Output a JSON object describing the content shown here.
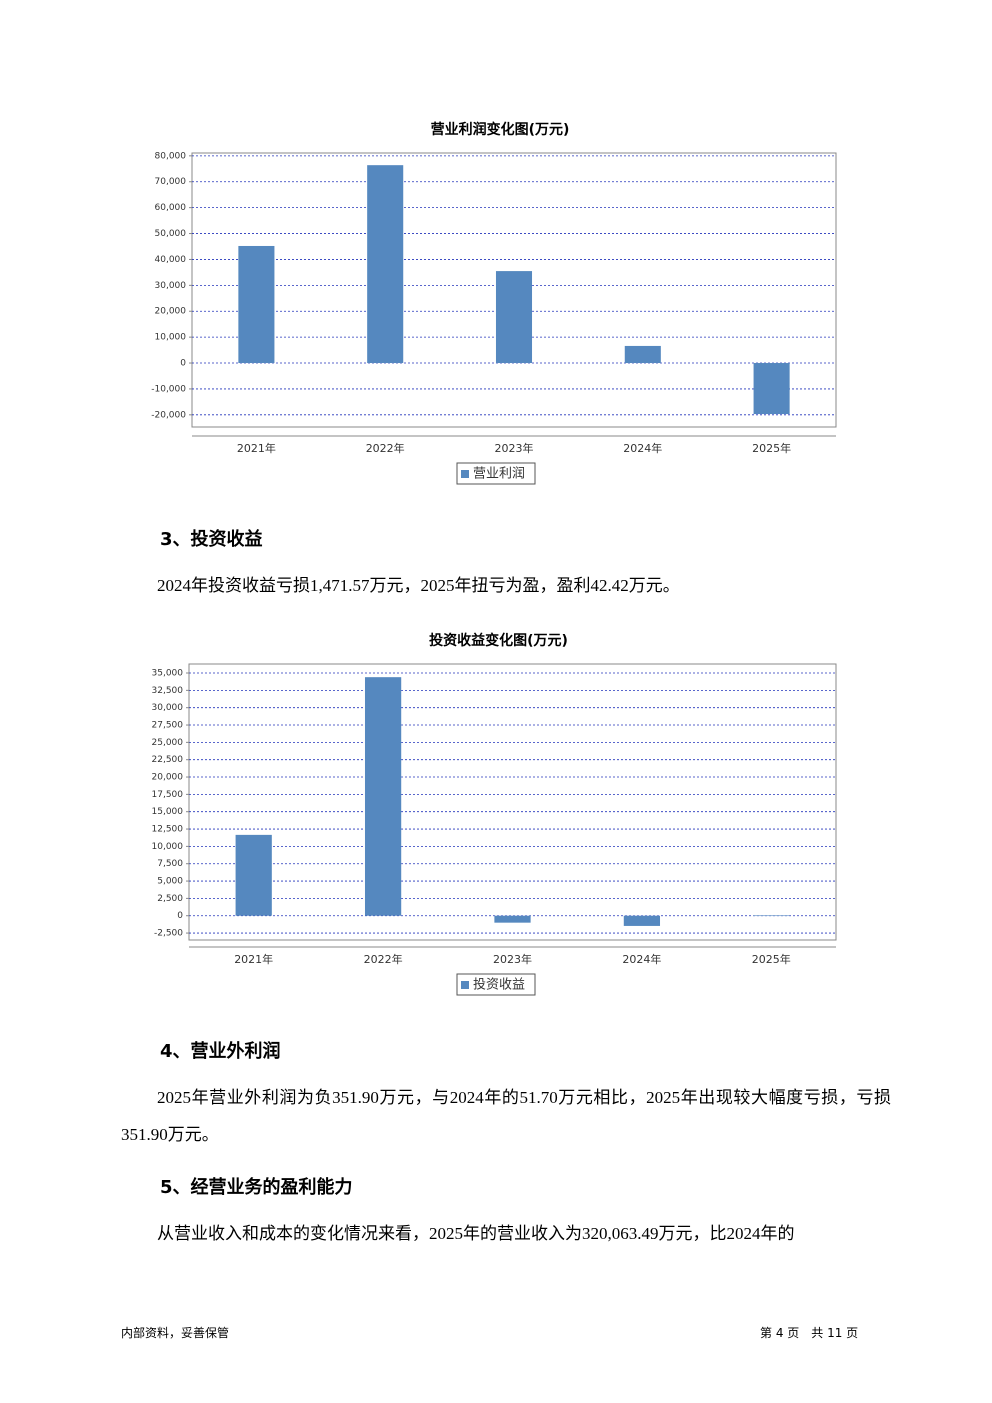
{
  "chart_data": [
    {
      "type": "bar",
      "title": "营业利润变化图(万元)",
      "categories": [
        "2021年",
        "2022年",
        "2023年",
        "2024年",
        "2025年"
      ],
      "series": [
        {
          "name": "营业利润",
          "color": "#5588bf",
          "values": [
            45200,
            76400,
            35500,
            6600,
            -19700
          ]
        }
      ],
      "ylim": [
        -24700,
        81100
      ],
      "yticks": [
        {
          "value": 80000,
          "label": "80,000"
        },
        {
          "value": 70000,
          "label": "70,000"
        },
        {
          "value": 60000,
          "label": "60,000"
        },
        {
          "value": 50000,
          "label": "50,000"
        },
        {
          "value": 40000,
          "label": "40,000"
        },
        {
          "value": 30000,
          "label": "30,000"
        },
        {
          "value": 20000,
          "label": "20,000"
        },
        {
          "value": 10000,
          "label": "10,000"
        },
        0,
        {
          "value": -10000,
          "label": "-10,000"
        },
        {
          "value": -20000,
          "label": "-20,000"
        }
      ],
      "grid": true
    },
    {
      "type": "bar",
      "title": "投资收益变化图(万元)",
      "categories": [
        "2021年",
        "2022年",
        "2023年",
        "2024年",
        "2025年"
      ],
      "series": [
        {
          "name": "投资收益",
          "color": "#5588bf",
          "values": [
            11660,
            34400,
            -1000,
            -1471.57,
            42.42
          ]
        }
      ],
      "ylim": [
        -3500,
        36300
      ],
      "yticks": [
        {
          "value": 35000,
          "label": "35,000"
        },
        {
          "value": 32500,
          "label": "32,500"
        },
        {
          "value": 30000,
          "label": "30,000"
        },
        {
          "value": 27500,
          "label": "27,500"
        },
        {
          "value": 25000,
          "label": "25,000"
        },
        {
          "value": 22500,
          "label": "22,500"
        },
        {
          "value": 20000,
          "label": "20,000"
        },
        {
          "value": 17500,
          "label": "17,500"
        },
        {
          "value": 15000,
          "label": "15,000"
        },
        {
          "value": 12500,
          "label": "12,500"
        },
        {
          "value": 10000,
          "label": "10,000"
        },
        {
          "value": 7500,
          "label": "7,500"
        },
        {
          "value": 5000,
          "label": "5,000"
        },
        {
          "value": 2500,
          "label": "2,500"
        },
        0,
        {
          "value": -2500,
          "label": "-2,500"
        }
      ],
      "grid": true
    }
  ],
  "sections": [
    {
      "heading": "3、投资收益",
      "text": "2024年投资收益亏损1,471.57万元，2025年扭亏为盈，盈利42.42万元。"
    },
    {
      "heading": "4、营业外利润",
      "text": "2025年营业外利润为负351.90万元，与2024年的51.70万元相比，2025年出现较大幅度亏损，亏损351.90万元。"
    },
    {
      "heading": "5、经营业务的盈利能力",
      "text": "从营业收入和成本的变化情况来看，2025年的营业收入为320,063.49万元，比2024年的"
    }
  ],
  "footer": {
    "left": "内部资料，妥善保管",
    "right": "第 4 页　共 11 页"
  }
}
